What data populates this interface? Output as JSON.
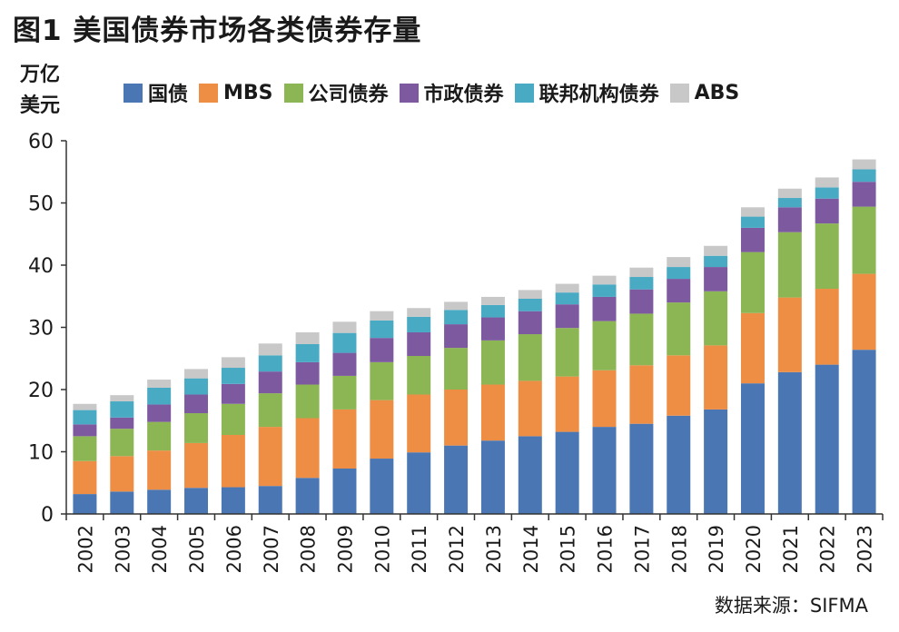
{
  "title": "图1  美国债券市场各类债券存量",
  "unit_line1": "万亿",
  "unit_line2": "美元",
  "source": "数据来源：SIFMA",
  "chart_data": {
    "type": "bar",
    "stacked": true,
    "title": "图1  美国债券市场各类债券存量",
    "ylabel": "万亿美元",
    "ylim": [
      0,
      60
    ],
    "yticks": [
      0,
      10,
      20,
      30,
      40,
      50,
      60
    ],
    "grid": false,
    "legend_position": "top",
    "categories": [
      "2002",
      "2003",
      "2004",
      "2005",
      "2006",
      "2007",
      "2008",
      "2009",
      "2010",
      "2011",
      "2012",
      "2013",
      "2014",
      "2015",
      "2016",
      "2017",
      "2018",
      "2019",
      "2020",
      "2021",
      "2022",
      "2023"
    ],
    "series": [
      {
        "name": "国债",
        "color": "#4a77b4",
        "values": [
          3.2,
          3.6,
          3.9,
          4.2,
          4.3,
          4.5,
          5.8,
          7.3,
          8.9,
          9.9,
          11.0,
          11.8,
          12.5,
          13.2,
          14.0,
          14.5,
          15.8,
          16.8,
          21.0,
          22.8,
          24.0,
          26.4
        ]
      },
      {
        "name": "MBS",
        "color": "#ee8e45",
        "values": [
          5.3,
          5.7,
          6.3,
          7.2,
          8.4,
          9.5,
          9.6,
          9.5,
          9.4,
          9.3,
          9.0,
          9.0,
          8.9,
          8.9,
          9.1,
          9.4,
          9.7,
          10.3,
          11.3,
          12.0,
          12.2,
          12.2
        ]
      },
      {
        "name": "公司债券",
        "color": "#8cb553",
        "values": [
          4.0,
          4.4,
          4.6,
          4.8,
          5.0,
          5.4,
          5.4,
          5.4,
          6.1,
          6.2,
          6.7,
          7.1,
          7.5,
          7.8,
          7.9,
          8.3,
          8.5,
          8.7,
          9.8,
          10.5,
          10.5,
          10.8
        ]
      },
      {
        "name": "市政债券",
        "color": "#7d5aa0",
        "values": [
          1.9,
          1.8,
          2.8,
          3.0,
          3.2,
          3.5,
          3.6,
          3.7,
          3.9,
          3.8,
          3.8,
          3.7,
          3.7,
          3.8,
          3.9,
          3.9,
          3.8,
          3.9,
          3.9,
          4.0,
          4.0,
          4.0
        ]
      },
      {
        "name": "联邦机构债券",
        "color": "#49aac4",
        "values": [
          2.3,
          2.6,
          2.7,
          2.6,
          2.6,
          2.6,
          2.9,
          3.2,
          2.8,
          2.5,
          2.3,
          2.0,
          2.0,
          1.9,
          2.0,
          2.0,
          1.9,
          1.8,
          1.8,
          1.5,
          1.8,
          2.0
        ]
      },
      {
        "name": "ABS",
        "color": "#c8c8c8",
        "values": [
          1.0,
          1.0,
          1.3,
          1.5,
          1.7,
          1.9,
          1.9,
          1.8,
          1.5,
          1.4,
          1.3,
          1.3,
          1.4,
          1.4,
          1.4,
          1.5,
          1.6,
          1.6,
          1.5,
          1.5,
          1.6,
          1.6
        ]
      }
    ]
  }
}
